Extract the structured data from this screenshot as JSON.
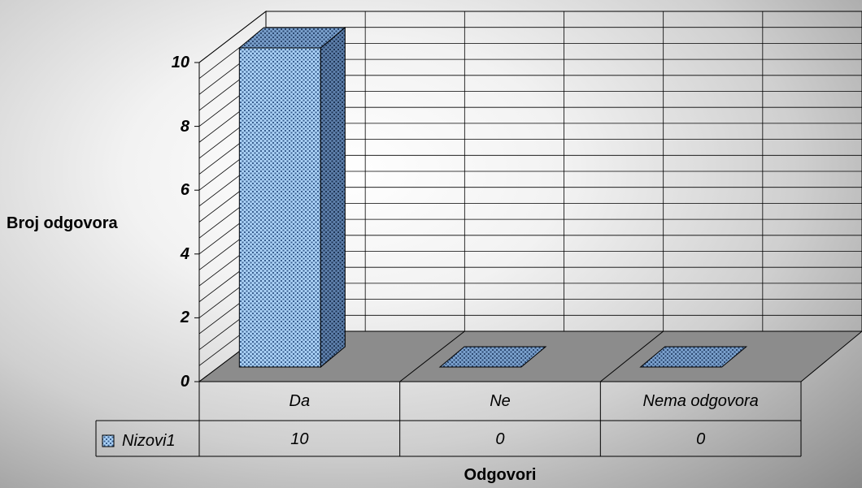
{
  "chart_data": {
    "type": "bar",
    "categories": [
      "Da",
      "Ne",
      "Nema odgovora"
    ],
    "series": [
      {
        "name": "Nizovi1",
        "values": [
          10,
          0,
          0
        ]
      }
    ],
    "xlabel": "Odgovori",
    "ylabel": "Broj odgovora",
    "ylim": [
      0,
      10
    ],
    "yticks": [
      "0",
      "2",
      "4",
      "6",
      "8",
      "10"
    ],
    "grid": true,
    "three_d": true,
    "data_table": true,
    "bar_color": "#9ec8f0",
    "bar_side_color": "#4f6f9a",
    "floor_color": "#8c8c8c",
    "bar_pattern": "dotted"
  }
}
